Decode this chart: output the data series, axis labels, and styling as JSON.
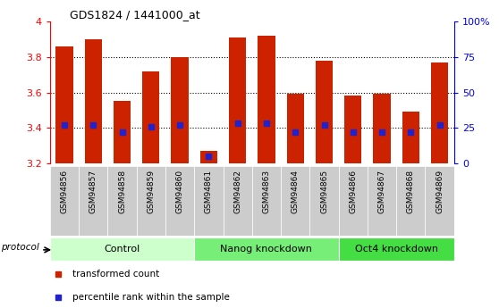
{
  "title": "GDS1824 / 1441000_at",
  "samples": [
    "GSM94856",
    "GSM94857",
    "GSM94858",
    "GSM94859",
    "GSM94860",
    "GSM94861",
    "GSM94862",
    "GSM94863",
    "GSM94864",
    "GSM94865",
    "GSM94866",
    "GSM94867",
    "GSM94868",
    "GSM94869"
  ],
  "transformed_counts": [
    3.86,
    3.9,
    3.55,
    3.72,
    3.8,
    3.27,
    3.91,
    3.92,
    3.59,
    3.78,
    3.58,
    3.59,
    3.49,
    3.77
  ],
  "percentile_ranks": [
    27,
    27,
    22,
    26,
    27,
    5,
    28,
    28,
    22,
    27,
    22,
    22,
    22,
    27
  ],
  "ymin": 3.2,
  "ymax": 4.0,
  "bar_color": "#cc2200",
  "percentile_color": "#2222cc",
  "groups": [
    {
      "label": "Control",
      "start": 0,
      "end": 5,
      "color": "#ccffcc"
    },
    {
      "label": "Nanog knockdown",
      "start": 5,
      "end": 10,
      "color": "#77ee77"
    },
    {
      "label": "Oct4 knockdown",
      "start": 10,
      "end": 14,
      "color": "#44dd44"
    }
  ],
  "protocol_label": "protocol",
  "legend_items": [
    {
      "label": "transformed count",
      "color": "#cc2200"
    },
    {
      "label": "percentile rank within the sample",
      "color": "#2222cc"
    }
  ],
  "right_yticks": [
    0,
    25,
    50,
    75,
    100
  ],
  "right_yticklabels": [
    "0",
    "25",
    "50",
    "75",
    "100%"
  ],
  "left_ytick_vals": [
    3.2,
    3.4,
    3.6,
    3.8,
    4.0
  ],
  "left_ytick_labels": [
    "3.2",
    "3.4",
    "3.6",
    "3.8",
    "4"
  ],
  "dotted_lines": [
    3.4,
    3.6,
    3.8
  ],
  "tick_bg": "#cccccc"
}
